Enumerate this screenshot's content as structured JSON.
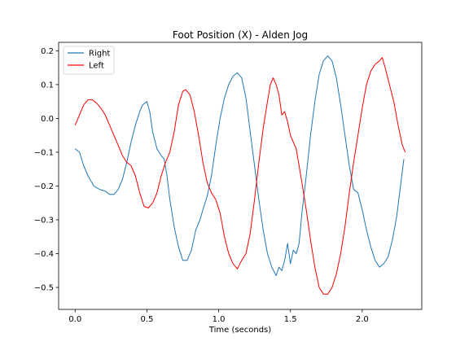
{
  "chart_data": {
    "type": "line",
    "title": "Foot Position (X) - Alden Jog",
    "xlabel": "Time (seconds)",
    "ylabel": "",
    "xlim": [
      -0.115,
      2.415
    ],
    "ylim": [
      -0.565,
      0.225
    ],
    "x_ticks": [
      0.0,
      0.5,
      1.0,
      1.5,
      2.0
    ],
    "x_tick_labels": [
      "0.0",
      "0.5",
      "1.0",
      "1.5",
      "2.0"
    ],
    "y_ticks": [
      -0.5,
      -0.4,
      -0.3,
      -0.2,
      -0.1,
      0.0,
      0.1,
      0.2
    ],
    "y_tick_labels": [
      "−0.5",
      "−0.4",
      "−0.3",
      "−0.2",
      "−0.1",
      "0.0",
      "0.1",
      "0.2"
    ],
    "grid": false,
    "legend_position": "upper-left",
    "series": [
      {
        "name": "Right",
        "color": "#1f77b4",
        "points": [
          [
            0.0,
            -0.09
          ],
          [
            0.03,
            -0.1
          ],
          [
            0.06,
            -0.14
          ],
          [
            0.09,
            -0.17
          ],
          [
            0.13,
            -0.2
          ],
          [
            0.17,
            -0.21
          ],
          [
            0.21,
            -0.215
          ],
          [
            0.24,
            -0.225
          ],
          [
            0.27,
            -0.225
          ],
          [
            0.3,
            -0.21
          ],
          [
            0.33,
            -0.18
          ],
          [
            0.36,
            -0.13
          ],
          [
            0.39,
            -0.07
          ],
          [
            0.42,
            -0.02
          ],
          [
            0.45,
            0.02
          ],
          [
            0.47,
            0.04
          ],
          [
            0.5,
            0.05
          ],
          [
            0.52,
            0.02
          ],
          [
            0.54,
            -0.04
          ],
          [
            0.57,
            -0.09
          ],
          [
            0.6,
            -0.11
          ],
          [
            0.62,
            -0.12
          ],
          [
            0.64,
            -0.17
          ],
          [
            0.66,
            -0.24
          ],
          [
            0.69,
            -0.32
          ],
          [
            0.72,
            -0.38
          ],
          [
            0.75,
            -0.42
          ],
          [
            0.78,
            -0.42
          ],
          [
            0.81,
            -0.39
          ],
          [
            0.84,
            -0.33
          ],
          [
            0.87,
            -0.3
          ],
          [
            0.89,
            -0.27
          ],
          [
            0.92,
            -0.23
          ],
          [
            0.95,
            -0.17
          ],
          [
            0.98,
            -0.08
          ],
          [
            1.01,
            0.0
          ],
          [
            1.04,
            0.06
          ],
          [
            1.07,
            0.1
          ],
          [
            1.1,
            0.125
          ],
          [
            1.13,
            0.135
          ],
          [
            1.16,
            0.12
          ],
          [
            1.19,
            0.06
          ],
          [
            1.22,
            -0.04
          ],
          [
            1.25,
            -0.14
          ],
          [
            1.28,
            -0.24
          ],
          [
            1.31,
            -0.33
          ],
          [
            1.34,
            -0.4
          ],
          [
            1.37,
            -0.44
          ],
          [
            1.4,
            -0.465
          ],
          [
            1.42,
            -0.44
          ],
          [
            1.44,
            -0.45
          ],
          [
            1.46,
            -0.42
          ],
          [
            1.48,
            -0.37
          ],
          [
            1.5,
            -0.43
          ],
          [
            1.52,
            -0.39
          ],
          [
            1.54,
            -0.4
          ],
          [
            1.56,
            -0.37
          ],
          [
            1.58,
            -0.28
          ],
          [
            1.61,
            -0.17
          ],
          [
            1.64,
            -0.05
          ],
          [
            1.67,
            0.05
          ],
          [
            1.7,
            0.13
          ],
          [
            1.73,
            0.17
          ],
          [
            1.76,
            0.185
          ],
          [
            1.79,
            0.17
          ],
          [
            1.82,
            0.12
          ],
          [
            1.85,
            0.04
          ],
          [
            1.88,
            -0.05
          ],
          [
            1.91,
            -0.14
          ],
          [
            1.94,
            -0.21
          ],
          [
            1.97,
            -0.22
          ],
          [
            2.0,
            -0.27
          ],
          [
            2.03,
            -0.33
          ],
          [
            2.06,
            -0.38
          ],
          [
            2.09,
            -0.42
          ],
          [
            2.12,
            -0.44
          ],
          [
            2.15,
            -0.43
          ],
          [
            2.18,
            -0.41
          ],
          [
            2.21,
            -0.36
          ],
          [
            2.24,
            -0.29
          ],
          [
            2.27,
            -0.19
          ],
          [
            2.29,
            -0.12
          ]
        ]
      },
      {
        "name": "Left",
        "color": "#ff0000",
        "points": [
          [
            0.0,
            -0.02
          ],
          [
            0.03,
            0.01
          ],
          [
            0.06,
            0.04
          ],
          [
            0.09,
            0.055
          ],
          [
            0.12,
            0.055
          ],
          [
            0.15,
            0.045
          ],
          [
            0.18,
            0.03
          ],
          [
            0.21,
            0.01
          ],
          [
            0.24,
            -0.02
          ],
          [
            0.27,
            -0.05
          ],
          [
            0.3,
            -0.08
          ],
          [
            0.33,
            -0.11
          ],
          [
            0.36,
            -0.13
          ],
          [
            0.39,
            -0.14
          ],
          [
            0.42,
            -0.17
          ],
          [
            0.45,
            -0.22
          ],
          [
            0.48,
            -0.26
          ],
          [
            0.51,
            -0.265
          ],
          [
            0.54,
            -0.25
          ],
          [
            0.57,
            -0.22
          ],
          [
            0.6,
            -0.17
          ],
          [
            0.63,
            -0.13
          ],
          [
            0.66,
            -0.1
          ],
          [
            0.69,
            -0.04
          ],
          [
            0.72,
            0.04
          ],
          [
            0.75,
            0.08
          ],
          [
            0.77,
            0.085
          ],
          [
            0.8,
            0.07
          ],
          [
            0.83,
            0.02
          ],
          [
            0.86,
            -0.05
          ],
          [
            0.89,
            -0.13
          ],
          [
            0.92,
            -0.19
          ],
          [
            0.95,
            -0.22
          ],
          [
            0.98,
            -0.24
          ],
          [
            1.01,
            -0.28
          ],
          [
            1.04,
            -0.35
          ],
          [
            1.07,
            -0.4
          ],
          [
            1.1,
            -0.43
          ],
          [
            1.13,
            -0.445
          ],
          [
            1.16,
            -0.42
          ],
          [
            1.19,
            -0.4
          ],
          [
            1.22,
            -0.34
          ],
          [
            1.25,
            -0.24
          ],
          [
            1.28,
            -0.13
          ],
          [
            1.31,
            -0.03
          ],
          [
            1.34,
            0.05
          ],
          [
            1.36,
            0.1
          ],
          [
            1.38,
            0.12
          ],
          [
            1.4,
            0.1
          ],
          [
            1.42,
            0.07
          ],
          [
            1.44,
            0.01
          ],
          [
            1.46,
            0.02
          ],
          [
            1.48,
            -0.01
          ],
          [
            1.5,
            -0.05
          ],
          [
            1.52,
            -0.07
          ],
          [
            1.54,
            -0.09
          ],
          [
            1.56,
            -0.14
          ],
          [
            1.58,
            -0.19
          ],
          [
            1.61,
            -0.27
          ],
          [
            1.64,
            -0.36
          ],
          [
            1.67,
            -0.44
          ],
          [
            1.7,
            -0.5
          ],
          [
            1.73,
            -0.52
          ],
          [
            1.76,
            -0.52
          ],
          [
            1.79,
            -0.5
          ],
          [
            1.82,
            -0.46
          ],
          [
            1.85,
            -0.4
          ],
          [
            1.88,
            -0.32
          ],
          [
            1.91,
            -0.22
          ],
          [
            1.94,
            -0.13
          ],
          [
            1.97,
            -0.05
          ],
          [
            2.0,
            0.03
          ],
          [
            2.03,
            0.1
          ],
          [
            2.06,
            0.14
          ],
          [
            2.09,
            0.16
          ],
          [
            2.12,
            0.17
          ],
          [
            2.14,
            0.18
          ],
          [
            2.16,
            0.15
          ],
          [
            2.19,
            0.1
          ],
          [
            2.22,
            0.05
          ],
          [
            2.25,
            -0.02
          ],
          [
            2.28,
            -0.08
          ],
          [
            2.3,
            -0.1
          ]
        ]
      }
    ]
  }
}
